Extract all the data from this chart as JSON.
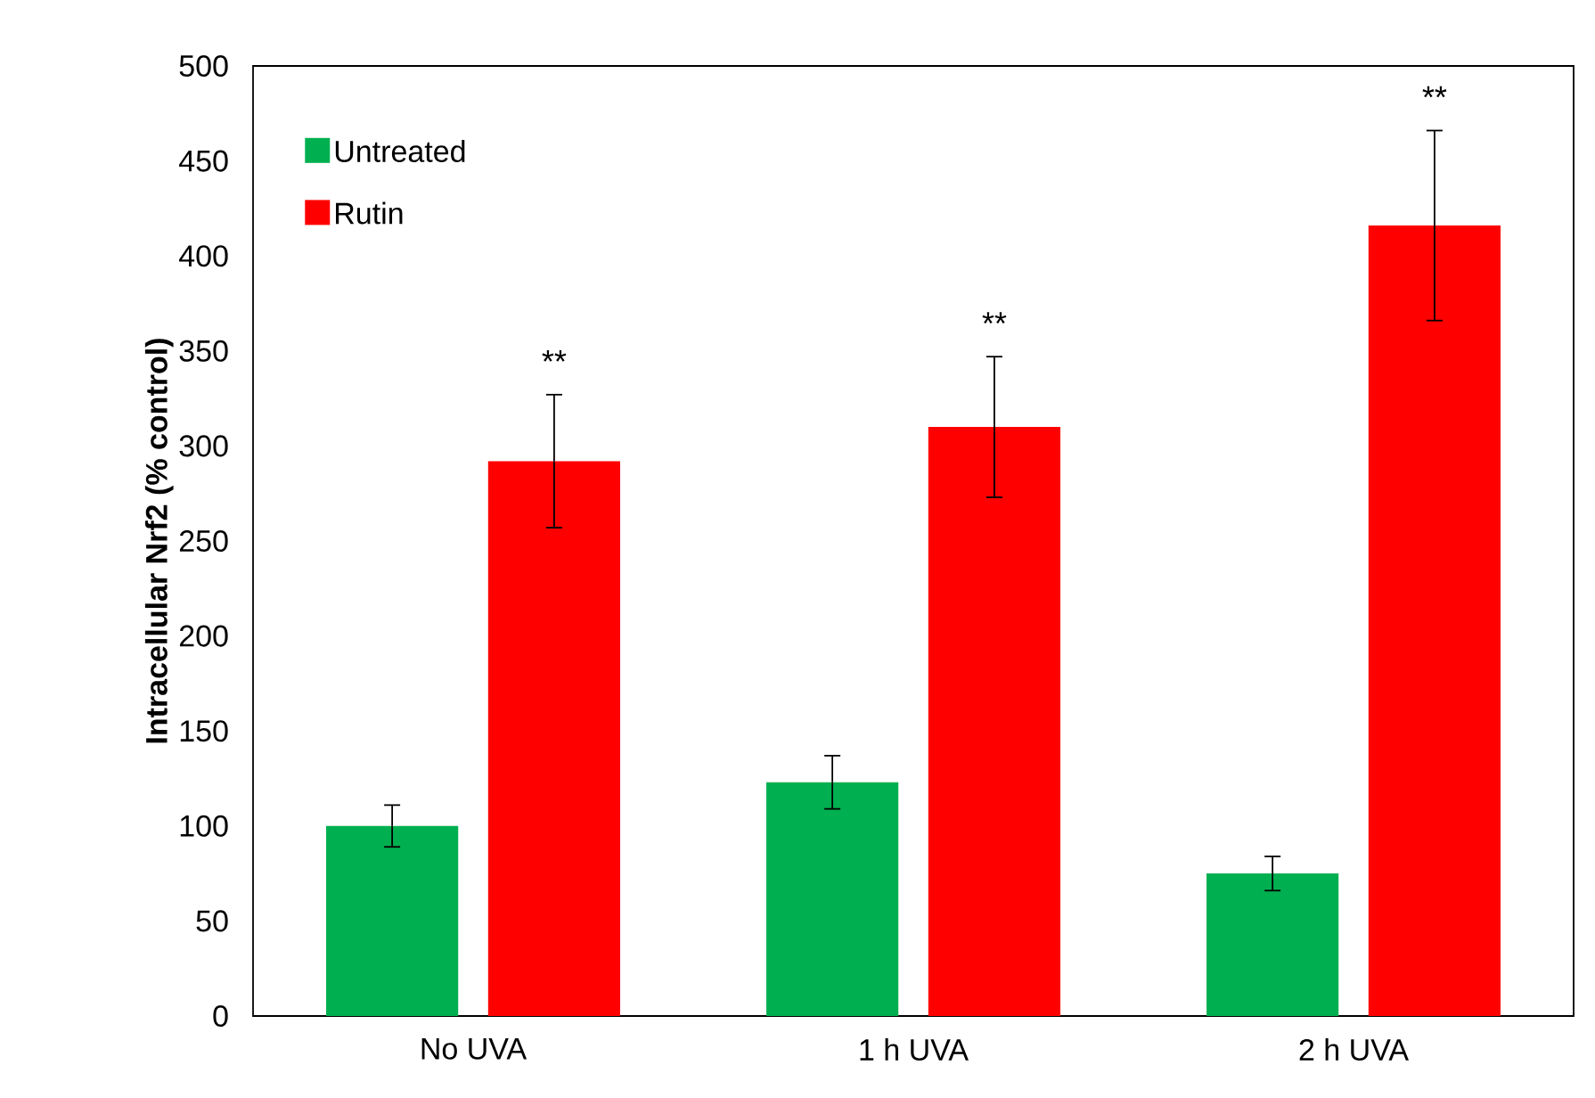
{
  "chart_data": {
    "type": "bar",
    "ylabel": "Intracellular Nrf2 (% control)",
    "categories": [
      "No UVA",
      "1 h UVA",
      "2 h UVA"
    ],
    "series": [
      {
        "name": "Untreated",
        "color": "#00b050",
        "values": [
          100,
          123,
          75
        ],
        "errors": [
          11,
          14,
          9
        ]
      },
      {
        "name": "Rutin",
        "color": "#ff0000",
        "values": [
          292,
          310,
          416
        ],
        "errors": [
          35,
          37,
          50
        ]
      }
    ],
    "ylim": [
      0,
      500
    ],
    "yticks": [
      0,
      50,
      100,
      150,
      200,
      250,
      300,
      350,
      400,
      450,
      500
    ],
    "legend": "top left",
    "annotations": [
      "**",
      "**",
      "**"
    ]
  }
}
